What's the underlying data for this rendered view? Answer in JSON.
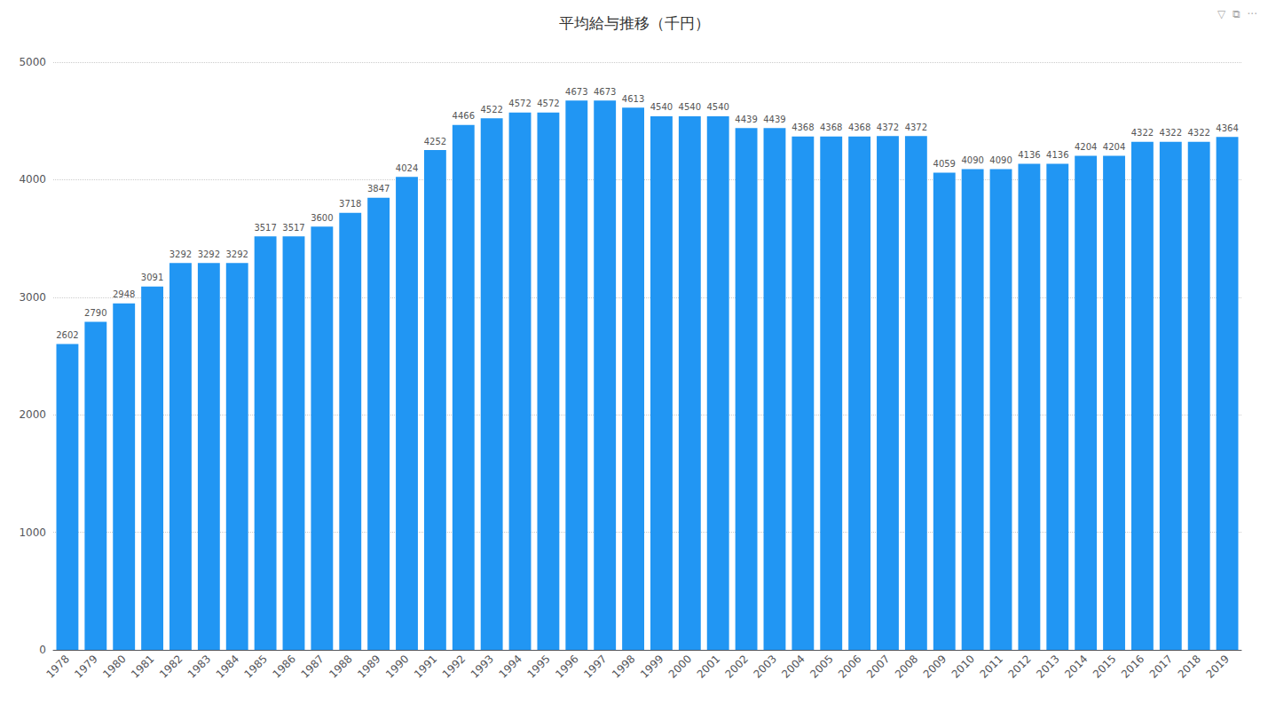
{
  "chart_data": {
    "type": "bar",
    "title": "平均給与推移（千円）",
    "categories": [
      "1978",
      "1979",
      "1980",
      "1981",
      "1982",
      "1983",
      "1984",
      "1985",
      "1986",
      "1987",
      "1988",
      "1989",
      "1990",
      "1991",
      "1992",
      "1993",
      "1994",
      "1995",
      "1996",
      "1997",
      "1998",
      "1999",
      "2000",
      "2001",
      "2002",
      "2003",
      "2004",
      "2005",
      "2006",
      "2007",
      "2008",
      "2009",
      "2010",
      "2011",
      "2012",
      "2013",
      "2014",
      "2015",
      "2016",
      "2017",
      "2018",
      "2019"
    ],
    "values": [
      2602,
      2790,
      2948,
      3091,
      3292,
      3292,
      3292,
      3517,
      3517,
      3600,
      3718,
      3847,
      4024,
      4252,
      4466,
      4522,
      4572,
      4572,
      4673,
      4673,
      4613,
      4540,
      4540,
      4540,
      4439,
      4439,
      4368,
      4368,
      4368,
      4372,
      4372,
      4059,
      4090,
      4090,
      4136,
      4136,
      4204,
      4204,
      4322,
      4322,
      4322,
      4364
    ],
    "color": "#2196F3",
    "ylim": [
      0,
      5000
    ],
    "yticks": [
      0,
      1000,
      2000,
      3000,
      4000,
      5000
    ],
    "grid": true,
    "data_labels": true,
    "annotations": [
      "▽  ⧉  ···"
    ]
  }
}
